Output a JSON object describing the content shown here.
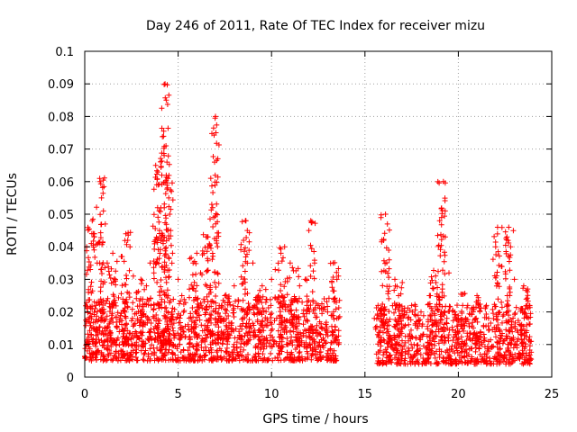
{
  "chart_data": {
    "type": "scatter",
    "title": "Day 246 of 2011, Rate Of TEC Index for receiver mizu",
    "xlabel": "GPS time / hours",
    "ylabel": "ROTI / TECUs",
    "xlim": [
      0,
      25
    ],
    "ylim": [
      0,
      0.1
    ],
    "xticks": [
      "0",
      "5",
      "10",
      "15",
      "20",
      "25"
    ],
    "yticks": [
      "0",
      "0.01",
      "0.02",
      "0.03",
      "0.04",
      "0.05",
      "0.06",
      "0.07",
      "0.08",
      "0.09",
      "0.1"
    ],
    "grid": true,
    "marker": "+",
    "color": "#ff0000",
    "series": [
      {
        "points": [
          [
            0.1,
            0.017
          ],
          [
            0.2,
            0.026
          ],
          [
            0.3,
            0.033
          ],
          [
            0.35,
            0.041
          ],
          [
            0.4,
            0.048
          ],
          [
            0.5,
            0.039
          ],
          [
            0.6,
            0.022
          ],
          [
            0.8,
            0.061
          ],
          [
            0.82,
            0.06
          ],
          [
            0.9,
            0.055
          ],
          [
            1.0,
            0.051
          ],
          [
            1.1,
            0.047
          ],
          [
            1.2,
            0.035
          ],
          [
            1.5,
            0.038
          ],
          [
            2.0,
            0.037
          ],
          [
            2.2,
            0.044
          ],
          [
            2.3,
            0.042
          ],
          [
            2.6,
            0.031
          ],
          [
            2.8,
            0.026
          ],
          [
            3.0,
            0.03
          ],
          [
            3.3,
            0.028
          ],
          [
            3.5,
            0.035
          ],
          [
            3.7,
            0.032
          ],
          [
            3.8,
            0.065
          ],
          [
            3.85,
            0.059
          ],
          [
            3.9,
            0.052
          ],
          [
            4.0,
            0.045
          ],
          [
            4.1,
            0.043
          ],
          [
            4.2,
            0.041
          ],
          [
            4.25,
            0.068
          ],
          [
            4.3,
            0.09
          ],
          [
            4.35,
            0.071
          ],
          [
            4.4,
            0.066
          ],
          [
            4.45,
            0.061
          ],
          [
            4.5,
            0.055
          ],
          [
            4.55,
            0.05
          ],
          [
            4.6,
            0.045
          ],
          [
            4.7,
            0.038
          ],
          [
            5.0,
            0.03
          ],
          [
            5.2,
            0.025
          ],
          [
            5.6,
            0.027
          ],
          [
            5.8,
            0.035
          ],
          [
            6.0,
            0.038
          ],
          [
            6.2,
            0.032
          ],
          [
            6.5,
            0.043
          ],
          [
            6.6,
            0.04
          ],
          [
            6.8,
            0.053
          ],
          [
            6.85,
            0.052
          ],
          [
            6.9,
            0.049
          ],
          [
            6.95,
            0.066
          ],
          [
            7.0,
            0.08
          ],
          [
            7.02,
            0.075
          ],
          [
            7.1,
            0.032
          ],
          [
            7.5,
            0.025
          ],
          [
            8.0,
            0.028
          ],
          [
            8.5,
            0.042
          ],
          [
            8.6,
            0.048
          ],
          [
            8.7,
            0.045
          ],
          [
            9.0,
            0.035
          ],
          [
            9.5,
            0.028
          ],
          [
            10.0,
            0.03
          ],
          [
            10.2,
            0.033
          ],
          [
            10.5,
            0.038
          ],
          [
            10.7,
            0.04
          ],
          [
            11.0,
            0.035
          ],
          [
            11.5,
            0.028
          ],
          [
            11.8,
            0.03
          ],
          [
            12.0,
            0.045
          ],
          [
            12.1,
            0.048
          ],
          [
            12.3,
            0.035
          ],
          [
            12.5,
            0.022
          ],
          [
            13.0,
            0.02
          ],
          [
            13.3,
            0.035
          ],
          [
            13.5,
            0.03
          ],
          [
            15.5,
            0.018
          ],
          [
            15.7,
            0.022
          ],
          [
            16.0,
            0.042
          ],
          [
            16.1,
            0.05
          ],
          [
            16.2,
            0.047
          ],
          [
            16.3,
            0.036
          ],
          [
            16.6,
            0.03
          ],
          [
            16.8,
            0.025
          ],
          [
            17.0,
            0.029
          ],
          [
            17.3,
            0.018
          ],
          [
            17.5,
            0.022
          ],
          [
            17.8,
            0.015
          ],
          [
            18.0,
            0.02
          ],
          [
            18.5,
            0.025
          ],
          [
            18.8,
            0.029
          ],
          [
            19.0,
            0.048
          ],
          [
            19.1,
            0.049
          ],
          [
            19.2,
            0.06
          ],
          [
            19.3,
            0.043
          ],
          [
            19.5,
            0.032
          ],
          [
            19.8,
            0.02
          ],
          [
            20.0,
            0.018
          ],
          [
            20.5,
            0.022
          ],
          [
            21.0,
            0.025
          ],
          [
            21.5,
            0.022
          ],
          [
            22.0,
            0.04
          ],
          [
            22.1,
            0.046
          ],
          [
            22.3,
            0.034
          ],
          [
            22.6,
            0.043
          ],
          [
            22.7,
            0.046
          ],
          [
            22.8,
            0.04
          ],
          [
            23.0,
            0.03
          ],
          [
            23.5,
            0.028
          ],
          [
            23.8,
            0.022
          ]
        ],
        "dense_band": [
          {
            "x": [
              0.0,
              13.5
            ],
            "y": [
              0.005,
              0.022
            ]
          },
          {
            "x": [
              15.6,
              23.9
            ],
            "y": [
              0.004,
              0.02
            ]
          }
        ],
        "spikes": [
          {
            "x": 0.3,
            "y_max": 0.049
          },
          {
            "x": 0.85,
            "y_max": 0.062
          },
          {
            "x": 1.5,
            "y_max": 0.038
          },
          {
            "x": 2.2,
            "y_max": 0.045
          },
          {
            "x": 3.0,
            "y_max": 0.03
          },
          {
            "x": 3.9,
            "y_max": 0.065
          },
          {
            "x": 4.3,
            "y_max": 0.09
          },
          {
            "x": 4.5,
            "y_max": 0.062
          },
          {
            "x": 5.8,
            "y_max": 0.038
          },
          {
            "x": 6.5,
            "y_max": 0.044
          },
          {
            "x": 6.95,
            "y_max": 0.08
          },
          {
            "x": 7.5,
            "y_max": 0.027
          },
          {
            "x": 8.6,
            "y_max": 0.048
          },
          {
            "x": 9.5,
            "y_max": 0.029
          },
          {
            "x": 10.6,
            "y_max": 0.04
          },
          {
            "x": 11.2,
            "y_max": 0.035
          },
          {
            "x": 12.1,
            "y_max": 0.049
          },
          {
            "x": 13.4,
            "y_max": 0.036
          },
          {
            "x": 15.8,
            "y_max": 0.022
          },
          {
            "x": 16.1,
            "y_max": 0.051
          },
          {
            "x": 16.8,
            "y_max": 0.029
          },
          {
            "x": 18.7,
            "y_max": 0.033
          },
          {
            "x": 19.1,
            "y_max": 0.06
          },
          {
            "x": 20.2,
            "y_max": 0.026
          },
          {
            "x": 21.0,
            "y_max": 0.028
          },
          {
            "x": 22.1,
            "y_max": 0.046
          },
          {
            "x": 22.7,
            "y_max": 0.047
          },
          {
            "x": 23.6,
            "y_max": 0.028
          }
        ]
      }
    ]
  }
}
